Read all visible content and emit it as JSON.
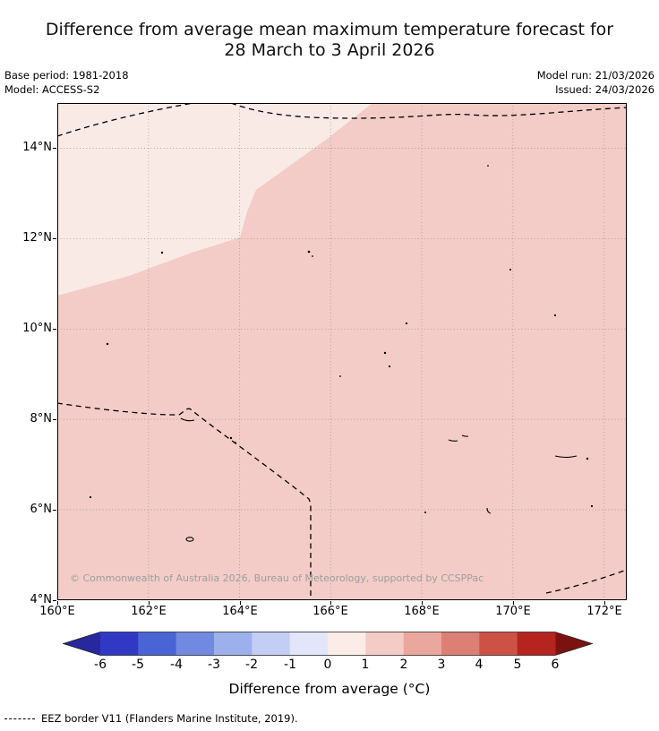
{
  "title": {
    "line1": "Difference from average mean maximum temperature forecast for",
    "line2": "28 March to 3 April 2026"
  },
  "meta": {
    "base_period": "Base period: 1981-2018",
    "model": "Model: ACCESS-S2",
    "model_run": "Model run: 21/03/2026",
    "issued": "Issued: 24/03/2026"
  },
  "map": {
    "x_ticks": [
      "160°E",
      "162°E",
      "164°E",
      "166°E",
      "168°E",
      "170°E",
      "172°E"
    ],
    "y_ticks": [
      "14°N",
      "12°N",
      "10°N",
      "8°N",
      "6°N",
      "4°N"
    ],
    "copyright": "© Commonwealth of Australia 2026, Bureau of Meteorology, supported by CCSPPac",
    "fill_main_color": "#f3ccc7",
    "fill_light_color": "#faeae5",
    "eez_border_color": "#000000"
  },
  "colorbar": {
    "ticks": [
      "-6",
      "-5",
      "-4",
      "-3",
      "-2",
      "-1",
      "0",
      "1",
      "2",
      "3",
      "4",
      "5",
      "6"
    ],
    "arrow_left_color": "#27279e",
    "arrow_right_color": "#7c1210",
    "segment_colors": [
      "#3139c4",
      "#4a64d6",
      "#7289e2",
      "#9cb0ec",
      "#c3cef4",
      "#e3e6fa",
      "#fbece8",
      "#f3ccc6",
      "#eaa79e",
      "#dc7f74",
      "#cc5245",
      "#b5241f"
    ],
    "label": "Difference from average (°C)"
  },
  "legend": {
    "eez_label": "EEZ border V11 (Flanders Marine Institute, 2019)."
  },
  "chart_data": {
    "type": "heatmap",
    "title": "Difference from average mean maximum temperature forecast for 28 March to 3 April 2026",
    "units": "°C",
    "x_ticks": [
      "160°E",
      "162°E",
      "164°E",
      "166°E",
      "168°E",
      "170°E",
      "172°E"
    ],
    "y_ticks": [
      "4°N",
      "6°N",
      "8°N",
      "10°N",
      "12°N",
      "14°N"
    ],
    "colorbar_range": [
      -6,
      6
    ],
    "colorbar_ticks": [
      -6,
      -5,
      -4,
      -3,
      -2,
      -1,
      0,
      1,
      2,
      3,
      4,
      5,
      6
    ],
    "regions": [
      {
        "area": "northwest of domain (west of ~164°E, north of ~10.5°N)",
        "anomaly_range_c": "0 to 1"
      },
      {
        "area": "remainder of domain",
        "anomaly_range_c": "1 to 2"
      }
    ]
  }
}
